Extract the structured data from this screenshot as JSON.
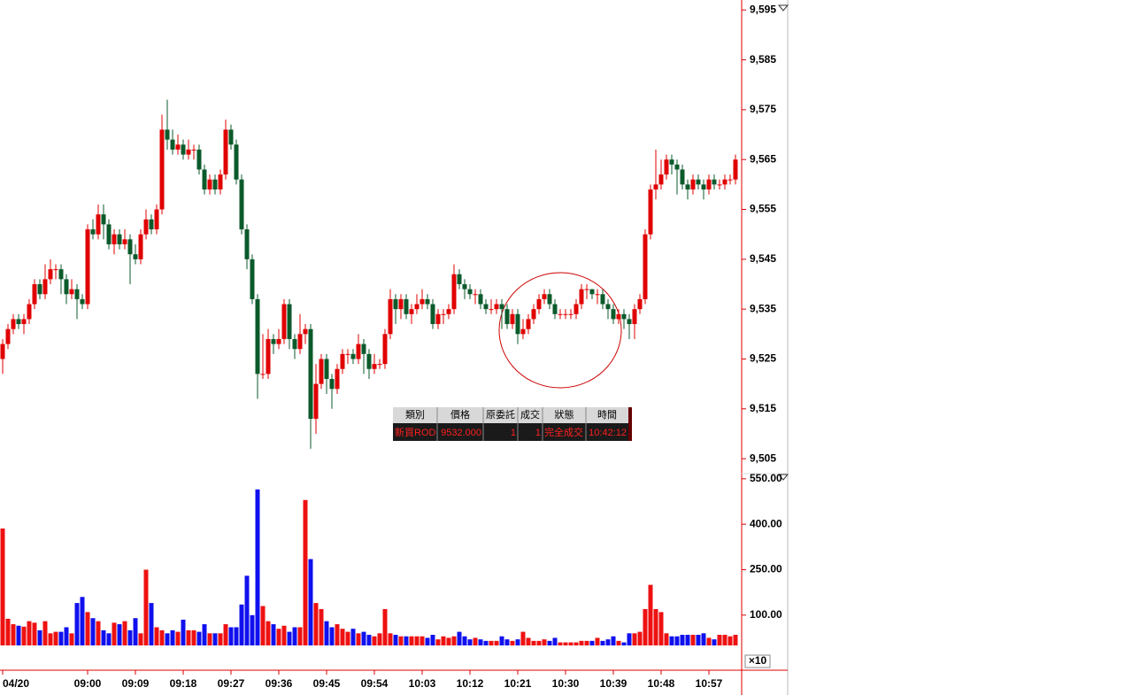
{
  "chart_data": [
    {
      "type": "candlestick",
      "xticks": [
        {
          "value": 0,
          "label": "04/20"
        },
        {
          "value": 16,
          "label": "09:00"
        },
        {
          "value": 25,
          "label": "09:09"
        },
        {
          "value": 34,
          "label": "09:18"
        },
        {
          "value": 43,
          "label": "09:27"
        },
        {
          "value": 52,
          "label": "09:36"
        },
        {
          "value": 61,
          "label": "09:45"
        },
        {
          "value": 70,
          "label": "09:54"
        },
        {
          "value": 79,
          "label": "10:03"
        },
        {
          "value": 88,
          "label": "10:12"
        },
        {
          "value": 97,
          "label": "10:21"
        },
        {
          "value": 106,
          "label": "10:30"
        },
        {
          "value": 115,
          "label": "10:39"
        },
        {
          "value": 124,
          "label": "10:48"
        },
        {
          "value": 133,
          "label": "10:57"
        }
      ],
      "ylim": [
        9502,
        9597
      ],
      "yticks": [
        {
          "value": 9505,
          "label": "9,505"
        },
        {
          "value": 9515,
          "label": "9,515"
        },
        {
          "value": 9525,
          "label": "9,525"
        },
        {
          "value": 9535,
          "label": "9,535"
        },
        {
          "value": 9545,
          "label": "9,545"
        },
        {
          "value": 9555,
          "label": "9,555"
        },
        {
          "value": 9565,
          "label": "9,565"
        },
        {
          "value": 9575,
          "label": "9,575"
        },
        {
          "value": 9585,
          "label": "9,585"
        },
        {
          "value": 9595,
          "label": "9,595"
        }
      ],
      "up_color": "#e00000",
      "down_color": "#0b5a2b",
      "open": [
        9525,
        9528,
        9531,
        9533,
        9532,
        9533,
        9536,
        9540,
        9538,
        9541,
        9543,
        9543,
        9541,
        9538,
        9539,
        9537,
        9536,
        9551,
        9550,
        9554,
        9552,
        9548,
        9550,
        9548,
        9549,
        9546,
        9545,
        9550,
        9553,
        9551,
        9555,
        9571,
        9569,
        9567,
        9568,
        9566,
        9567,
        9567,
        9563,
        9559,
        9561,
        9559,
        9562,
        9571,
        9568,
        9561,
        9551,
        9545,
        9537,
        9522,
        9522,
        9529,
        9528,
        9529,
        9536,
        9529,
        9527,
        9530,
        9531,
        9513,
        9520,
        9525,
        9521,
        9519,
        9523,
        9526,
        9526,
        9525,
        9528,
        9526,
        9523,
        9524,
        9524,
        9530,
        9537,
        9535,
        9537,
        9534,
        9535,
        9536,
        9537,
        9536,
        9532,
        9534,
        9534,
        9535,
        9542,
        9540,
        9539,
        9538,
        9538,
        9536,
        9535,
        9535,
        9536,
        9535,
        9532,
        9534,
        9530,
        9531,
        9533,
        9535,
        9537,
        9538,
        9536,
        9534,
        9534,
        9534,
        9534,
        9536,
        9539,
        9539,
        9538,
        9538,
        9536,
        9535,
        9533,
        9534,
        9533,
        9532,
        9535,
        9537,
        9550,
        9559,
        9560,
        9562,
        9565,
        9564,
        9563,
        9560,
        9559,
        9561,
        9560,
        9559,
        9561,
        9560,
        9560,
        9561,
        9561
      ],
      "high": [
        9529,
        9532,
        9534,
        9534,
        9534,
        9537,
        9541,
        9541,
        9544,
        9545,
        9544,
        9544,
        9542,
        9541,
        9540,
        9538,
        9552,
        9553,
        9556,
        9556,
        9553,
        9551,
        9551,
        9551,
        9550,
        9548,
        9551,
        9555,
        9554,
        9556,
        9574,
        9577,
        9571,
        9570,
        9569,
        9569,
        9568,
        9568,
        9564,
        9562,
        9562,
        9563,
        9573,
        9572,
        9569,
        9562,
        9552,
        9546,
        9538,
        9530,
        9531,
        9530,
        9531,
        9537,
        9537,
        9530,
        9534,
        9532,
        9532,
        9524,
        9526,
        9526,
        9522,
        9524,
        9527,
        9527,
        9527,
        9530,
        9529,
        9527,
        9526,
        9525,
        9531,
        9539,
        9538,
        9538,
        9538,
        9536,
        9538,
        9539,
        9538,
        9537,
        9535,
        9535,
        9536,
        9544,
        9543,
        9541,
        9540,
        9539,
        9539,
        9537,
        9537,
        9537,
        9537,
        9536,
        9535,
        9535,
        9533,
        9534,
        9536,
        9538,
        9539,
        9539,
        9537,
        9535,
        9535,
        9535,
        9537,
        9540,
        9540,
        9539,
        9539,
        9539,
        9537,
        9536,
        9535,
        9535,
        9534,
        9536,
        9538,
        9551,
        9560,
        9567,
        9565,
        9566,
        9566,
        9565,
        9564,
        9561,
        9562,
        9562,
        9561,
        9562,
        9562,
        9561,
        9562,
        9562,
        9566
      ],
      "low": [
        9522,
        9527,
        9530,
        9531,
        9530,
        9532,
        9535,
        9537,
        9537,
        9540,
        9541,
        9538,
        9536,
        9537,
        9533,
        9535,
        9535,
        9549,
        9549,
        9549,
        9547,
        9546,
        9547,
        9547,
        9540,
        9544,
        9544,
        9549,
        9550,
        9550,
        9554,
        9567,
        9566,
        9566,
        9565,
        9565,
        9565,
        9562,
        9558,
        9558,
        9558,
        9558,
        9561,
        9567,
        9560,
        9550,
        9543,
        9536,
        9517,
        9521,
        9521,
        9526,
        9527,
        9528,
        9527,
        9525,
        9526,
        9528,
        9507,
        9510,
        9519,
        9518,
        9515,
        9518,
        9522,
        9524,
        9524,
        9524,
        9522,
        9521,
        9522,
        9523,
        9523,
        9529,
        9532,
        9533,
        9533,
        9532,
        9534,
        9535,
        9535,
        9531,
        9531,
        9532,
        9533,
        9534,
        9539,
        9537,
        9537,
        9536,
        9535,
        9534,
        9534,
        9534,
        9531,
        9531,
        9531,
        9528,
        9529,
        9530,
        9532,
        9534,
        9536,
        9535,
        9533,
        9533,
        9533,
        9533,
        9533,
        9535,
        9537,
        9537,
        9536,
        9535,
        9533,
        9532,
        9532,
        9531,
        9529,
        9529,
        9534,
        9536,
        9549,
        9557,
        9559,
        9561,
        9562,
        9558,
        9559,
        9557,
        9558,
        9559,
        9557,
        9558,
        9559,
        9559,
        9559,
        9560,
        9560
      ],
      "close": [
        9528,
        9531,
        9533,
        9532,
        9533,
        9536,
        9540,
        9538,
        9541,
        9543,
        9543,
        9541,
        9538,
        9539,
        9537,
        9536,
        9551,
        9550,
        9554,
        9552,
        9548,
        9550,
        9548,
        9549,
        9546,
        9545,
        9550,
        9553,
        9551,
        9555,
        9571,
        9569,
        9567,
        9568,
        9566,
        9567,
        9567,
        9563,
        9559,
        9561,
        9559,
        9562,
        9571,
        9568,
        9561,
        9551,
        9545,
        9537,
        9522,
        9522,
        9529,
        9528,
        9529,
        9536,
        9529,
        9527,
        9530,
        9531,
        9513,
        9520,
        9525,
        9521,
        9519,
        9523,
        9526,
        9526,
        9525,
        9528,
        9526,
        9523,
        9524,
        9524,
        9530,
        9537,
        9535,
        9537,
        9534,
        9535,
        9536,
        9537,
        9536,
        9532,
        9534,
        9534,
        9535,
        9542,
        9540,
        9539,
        9538,
        9538,
        9536,
        9535,
        9535,
        9536,
        9535,
        9532,
        9534,
        9530,
        9531,
        9533,
        9535,
        9537,
        9538,
        9536,
        9534,
        9534,
        9534,
        9534,
        9536,
        9539,
        9539,
        9538,
        9538,
        9536,
        9535,
        9533,
        9534,
        9533,
        9532,
        9535,
        9537,
        9550,
        9559,
        9560,
        9562,
        9565,
        9564,
        9563,
        9560,
        9559,
        9561,
        9560,
        9559,
        9561,
        9560,
        9560,
        9561,
        9561,
        9565
      ]
    },
    {
      "type": "bar",
      "unit_label": "×10",
      "ylim": [
        0,
        567
      ],
      "yticks": [
        {
          "value": 100,
          "label": "100.00"
        },
        {
          "value": 250,
          "label": "250.00"
        },
        {
          "value": 400,
          "label": "400.00"
        },
        {
          "value": 550,
          "label": "550.00"
        }
      ],
      "up_color": "#ee1111",
      "down_color": "#1010ee",
      "values": [
        386,
        88,
        70,
        65,
        62,
        80,
        75,
        50,
        80,
        40,
        45,
        45,
        60,
        40,
        140,
        160,
        110,
        90,
        80,
        50,
        40,
        75,
        70,
        80,
        50,
        90,
        40,
        250,
        140,
        60,
        50,
        40,
        50,
        45,
        85,
        50,
        50,
        45,
        70,
        40,
        40,
        40,
        70,
        60,
        60,
        135,
        230,
        100,
        515,
        130,
        80,
        70,
        55,
        65,
        45,
        60,
        60,
        480,
        285,
        140,
        120,
        80,
        60,
        70,
        55,
        45,
        55,
        40,
        45,
        35,
        30,
        40,
        120,
        40,
        35,
        30,
        30,
        30,
        30,
        30,
        25,
        35,
        20,
        30,
        25,
        30,
        45,
        30,
        20,
        25,
        20,
        15,
        15,
        15,
        30,
        20,
        15,
        20,
        45,
        25,
        15,
        15,
        20,
        15,
        25,
        10,
        10,
        10,
        10,
        15,
        15,
        15,
        25,
        15,
        20,
        30,
        15,
        10,
        40,
        40,
        45,
        120,
        200,
        120,
        110,
        40,
        30,
        30,
        35,
        35,
        35,
        35,
        40,
        25,
        20,
        35,
        35,
        30,
        35
      ]
    }
  ],
  "order_table": {
    "headers": [
      "類別",
      "價格",
      "原委託",
      "成交",
      "狀態",
      "時間"
    ],
    "rows": [
      [
        "新買ROD",
        "9532.000",
        "1",
        "1",
        "完全成交",
        "10:42:12"
      ]
    ]
  }
}
